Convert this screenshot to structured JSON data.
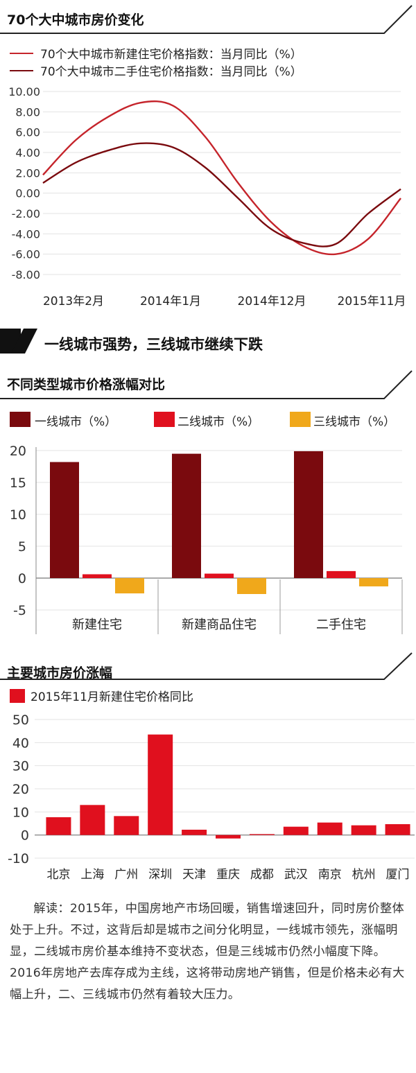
{
  "colors": {
    "dark_red": "#7a0a0e",
    "red": "#c5242b",
    "bright_red": "#e0101e",
    "orange": "#f0a81b",
    "text": "#222222"
  },
  "section1": {
    "title": "70个大中城市房价变化",
    "legend": [
      "70个大中城市新建住宅价格指数：当月同比（%）",
      "70个大中城市二手住宅价格指数：当月同比（%）"
    ]
  },
  "section2": {
    "banner": "一线城市强势，三线城市继续下跌",
    "title": "不同类型城市价格涨幅对比"
  },
  "section3": {
    "title": "主要城市房价涨幅"
  },
  "paragraph": "解读：2015年，中国房地产市场回暖，销售增速回升，同时房价整体处于上升。不过，这背后却是城市之间分化明显，一线城市领先，涨幅明显，二线城市房价基本维持不变状态，但是三线城市仍然小幅度下降。2016年房地产去库存成为主线，这将带动房地产销售，但是价格未必有大幅上升，二、三线城市仍然有着较大压力。",
  "chart_data": [
    {
      "type": "line",
      "title": "70个大中城市房价变化",
      "x_ticks": [
        "2013年2月",
        "2014年1月",
        "2014年12月",
        "2015年11月"
      ],
      "y_ticks": [
        "10.00",
        "8.00",
        "6.00",
        "4.00",
        "2.00",
        "0.00",
        "-2.00",
        "-4.00",
        "-6.00",
        "-8.00"
      ],
      "ylim": [
        -8,
        10
      ],
      "x": [
        "2013-02",
        "2013-05",
        "2013-08",
        "2013-11",
        "2014-02",
        "2014-05",
        "2014-08",
        "2014-11",
        "2015-02",
        "2015-05",
        "2015-08",
        "2015-11"
      ],
      "series": [
        {
          "name": "70个大中城市新建住宅价格指数：当月同比（%）",
          "color": "#c5242b",
          "values": [
            1.8,
            5.2,
            7.5,
            8.9,
            8.6,
            5.5,
            1.0,
            -2.8,
            -5.2,
            -6.0,
            -4.5,
            -0.5
          ]
        },
        {
          "name": "70个大中城市二手住宅价格指数：当月同比（%）",
          "color": "#7a0a0e",
          "values": [
            1.0,
            3.0,
            4.2,
            4.9,
            4.5,
            2.5,
            -0.5,
            -3.5,
            -4.9,
            -5.0,
            -2.0,
            0.4
          ]
        }
      ]
    },
    {
      "type": "bar",
      "title": "不同类型城市价格涨幅对比",
      "categories": [
        "新建住宅",
        "新建商品住宅",
        "二手住宅"
      ],
      "y_ticks": [
        "20",
        "15",
        "10",
        "5",
        "0",
        "-5"
      ],
      "ylim": [
        -5,
        20
      ],
      "series": [
        {
          "name": "一线城市（%）",
          "color": "#7a0a0e",
          "values": [
            18.2,
            19.5,
            19.9
          ]
        },
        {
          "name": "二线城市（%）",
          "color": "#e0101e",
          "values": [
            0.6,
            0.7,
            1.1
          ]
        },
        {
          "name": "三线城市（%）",
          "color": "#f0a81b",
          "values": [
            -2.4,
            -2.5,
            -1.3
          ]
        }
      ]
    },
    {
      "type": "bar",
      "title": "主要城市房价涨幅",
      "categories": [
        "北京",
        "上海",
        "广州",
        "深圳",
        "天津",
        "重庆",
        "成都",
        "武汉",
        "南京",
        "杭州",
        "厦门"
      ],
      "y_ticks": [
        "50",
        "40",
        "30",
        "20",
        "10",
        "0",
        "-10"
      ],
      "ylim": [
        -10,
        50
      ],
      "series": [
        {
          "name": "2015年11月新建住宅价格同比",
          "color": "#e0101e",
          "values": [
            7.7,
            13.0,
            8.2,
            43.5,
            2.3,
            -1.5,
            0.4,
            3.6,
            5.4,
            4.2,
            4.7
          ]
        }
      ]
    }
  ]
}
